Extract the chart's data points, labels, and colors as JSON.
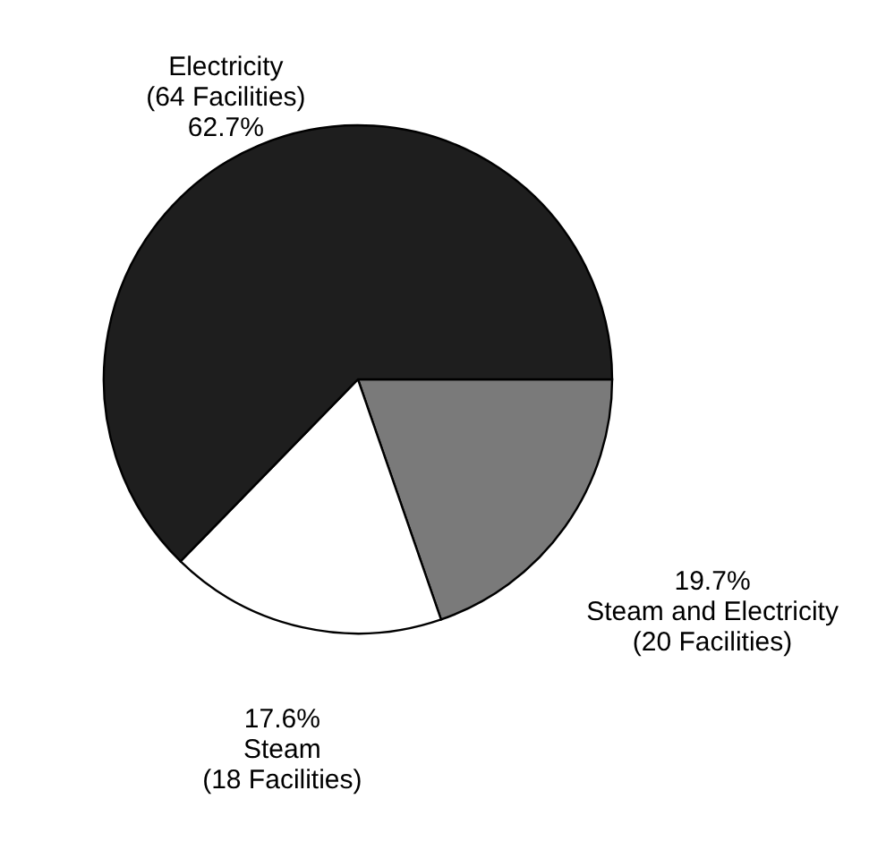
{
  "chart_data": {
    "type": "pie",
    "categories": [
      "Steam and Electricity",
      "Steam",
      "Electricity"
    ],
    "values": [
      19.7,
      17.6,
      62.7
    ],
    "colors": [
      "#7a7a7a",
      "#ffffff",
      "#1e1e1e"
    ],
    "annotations": [
      "(20 Facilities)",
      "(18 Facilities)",
      "(64 Facilities)"
    ],
    "value_labels": [
      "19.7%",
      "17.6%",
      "62.7%"
    ]
  }
}
